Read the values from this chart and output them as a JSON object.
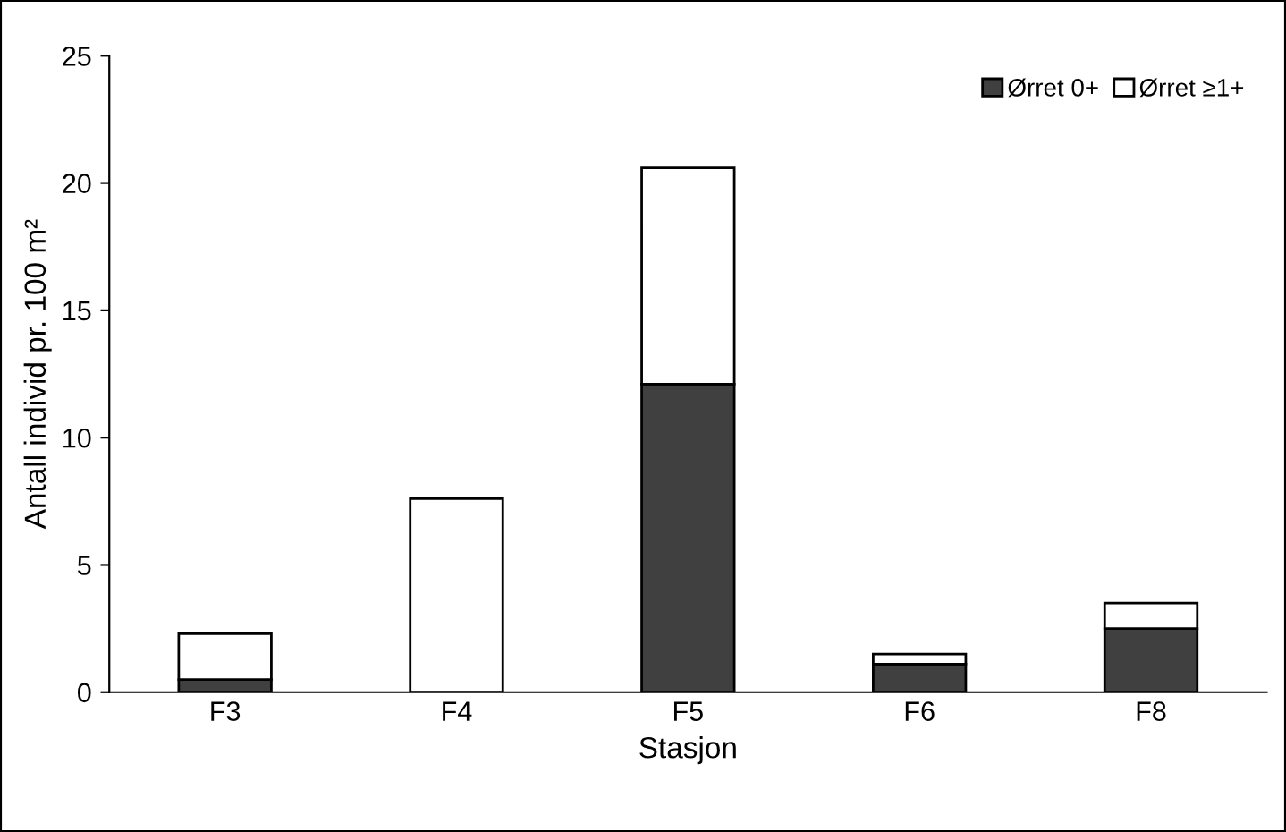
{
  "chart_data": {
    "type": "bar",
    "stacked": true,
    "xlabel": "Stasjon",
    "ylabel": "Antall individ pr. 100 m²",
    "categories": [
      "F3",
      "F4",
      "F5",
      "F6",
      "F8"
    ],
    "series": [
      {
        "name": "Ørret 0+",
        "color": "#404040",
        "values": [
          0.5,
          0,
          12.1,
          1.1,
          2.5
        ]
      },
      {
        "name": "Ørret ≥1+",
        "color": "#ffffff",
        "values": [
          1.8,
          7.6,
          8.5,
          0.4,
          1.0
        ]
      }
    ],
    "ylim": [
      0,
      25
    ],
    "yticks": [
      0,
      5,
      10,
      15,
      20,
      25
    ],
    "grid": false,
    "legend": "top right"
  }
}
